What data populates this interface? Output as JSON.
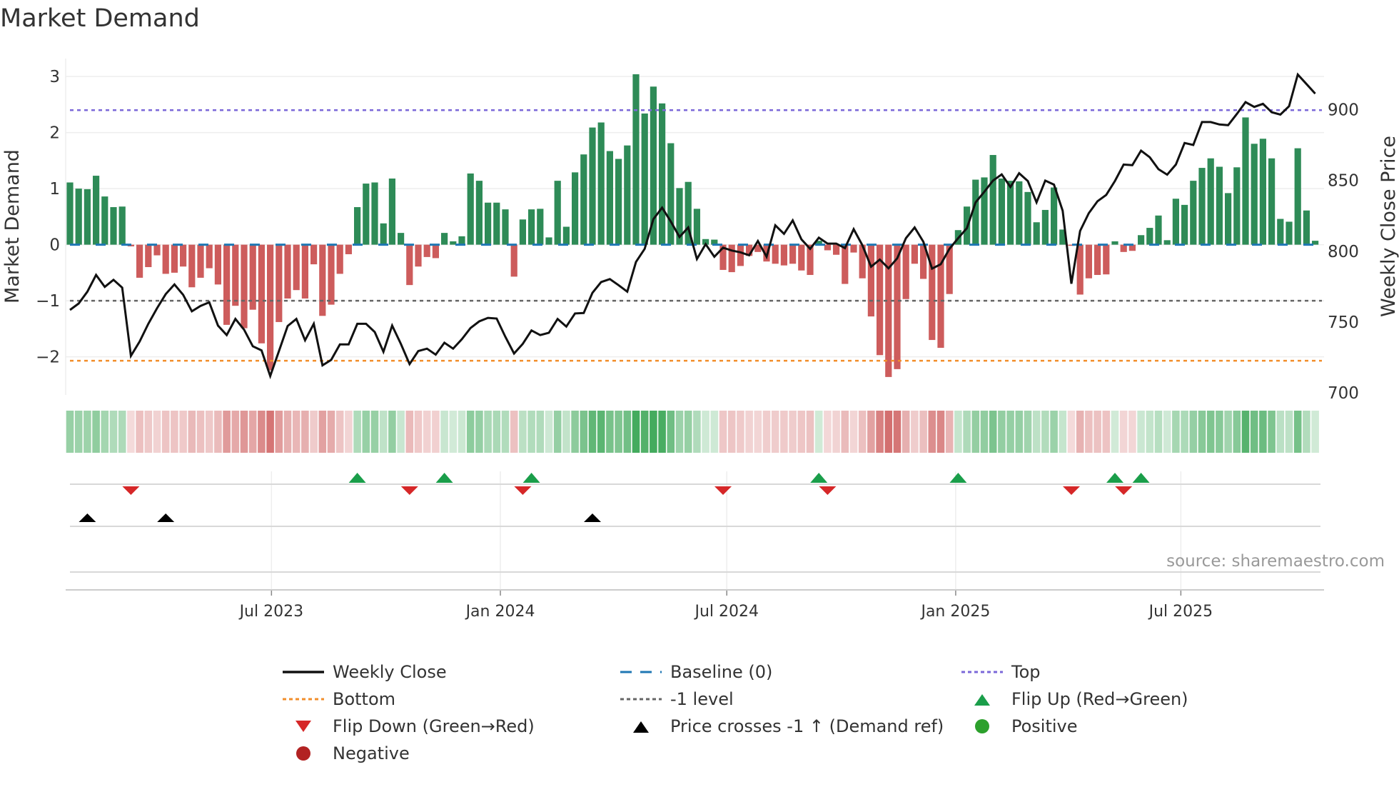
{
  "title": "Market Demand",
  "source": "source: sharemaestro.com",
  "colors": {
    "pos": "#2e8b57",
    "neg": "#cd5c5c",
    "line": "#111111",
    "baseline": "#1f77b4",
    "top": "#7b68d9",
    "bottom": "#f28e2b",
    "minus1": "#666666",
    "flipUp": "#1a9e4a",
    "flipDown": "#d62728",
    "cross": "#000000",
    "positive": "#2ca02c",
    "negative": "#b22222",
    "stripPos": "#3aa655",
    "stripNeg": "#cd5c5c"
  },
  "chart_data": {
    "type": "bar",
    "title": "Market Demand",
    "ylabel": "Market Demand",
    "y2label": "Weekly Close Price",
    "start_date": "2023-01-20",
    "frequency_days": 7,
    "ylim": [
      -2.68,
      3.32
    ],
    "y2lim": [
      698.4,
      936.2
    ],
    "yticks": [
      3,
      2,
      1,
      0,
      -1,
      -2
    ],
    "ytick_labels": [
      "3",
      "2",
      "1",
      "0",
      "−1",
      "−2"
    ],
    "y2ticks": [
      900,
      850,
      800,
      750,
      700
    ],
    "y2tick_labels": [
      "900",
      "850",
      "800",
      "750",
      "700"
    ],
    "xticks": [
      {
        "date": "2023-07-01",
        "label": "Jul 2023"
      },
      {
        "date": "2024-01-01",
        "label": "Jan 2024"
      },
      {
        "date": "2024-07-01",
        "label": "Jul 2024"
      },
      {
        "date": "2025-01-01",
        "label": "Jan 2025"
      },
      {
        "date": "2025-07-01",
        "label": "Jul 2025"
      }
    ],
    "levels": {
      "top": 2.4,
      "bottom": -2.07,
      "minus1": -1,
      "baseline": 0
    },
    "demand": [
      1.11,
      1.0,
      0.99,
      1.23,
      0.86,
      0.67,
      0.68,
      -0.03,
      -0.59,
      -0.4,
      -0.19,
      -0.52,
      -0.5,
      -0.39,
      -0.76,
      -0.59,
      -0.42,
      -0.71,
      -1.43,
      -1.09,
      -1.49,
      -1.16,
      -1.76,
      -2.24,
      -1.38,
      -0.96,
      -0.81,
      -0.96,
      -0.35,
      -1.27,
      -1.07,
      -0.52,
      -0.17,
      0.67,
      1.09,
      1.11,
      0.38,
      1.18,
      0.21,
      -0.72,
      -0.39,
      -0.22,
      -0.24,
      0.21,
      0.06,
      0.15,
      1.27,
      1.14,
      0.75,
      0.75,
      0.63,
      -0.57,
      0.45,
      0.63,
      0.64,
      0.13,
      1.14,
      0.32,
      1.29,
      1.61,
      2.09,
      2.18,
      1.67,
      1.53,
      1.77,
      3.04,
      2.34,
      2.82,
      2.52,
      1.81,
      1.01,
      1.12,
      0.64,
      0.1,
      0.09,
      -0.45,
      -0.49,
      -0.38,
      -0.2,
      -0.13,
      -0.3,
      -0.34,
      -0.37,
      -0.34,
      -0.46,
      -0.54,
      0.07,
      -0.1,
      -0.18,
      -0.7,
      -0.14,
      -0.6,
      -1.28,
      -1.97,
      -2.36,
      -2.22,
      -0.97,
      -0.34,
      -0.61,
      -1.7,
      -1.84,
      -0.88,
      0.26,
      0.68,
      1.16,
      1.2,
      1.6,
      1.18,
      1.14,
      1.13,
      0.94,
      0.4,
      0.62,
      1.02,
      0.27,
      -0.02,
      -0.89,
      -0.6,
      -0.54,
      -0.53,
      0.06,
      -0.13,
      -0.11,
      0.17,
      0.3,
      0.52,
      0.08,
      0.82,
      0.71,
      1.14,
      1.37,
      1.54,
      1.39,
      0.92,
      1.38,
      2.27,
      1.8,
      1.89,
      1.54,
      0.46,
      0.41,
      1.72,
      0.61,
      0.07
    ],
    "weekly_close": [
      758.5,
      763,
      771.4,
      783.2,
      774.8,
      779.8,
      774.3,
      726,
      736.1,
      748.7,
      759.7,
      769.7,
      776.5,
      769.2,
      757.5,
      761.3,
      763.9,
      747.4,
      740.7,
      752.1,
      744.5,
      732.8,
      729.9,
      711.8,
      729.4,
      747.1,
      752.1,
      737,
      748.7,
      719.3,
      723.2,
      734.1,
      734.1,
      748.7,
      748.7,
      742.9,
      728.9,
      747.4,
      734.5,
      720.2,
      729.4,
      731.1,
      726.9,
      735.3,
      731.1,
      737.8,
      745.7,
      750.4,
      752.9,
      752.4,
      739.5,
      727.7,
      734.5,
      744,
      740.7,
      742.4,
      752.1,
      746.7,
      756,
      756.3,
      770.6,
      778.2,
      780.3,
      776,
      771.4,
      792.4,
      801.7,
      822.7,
      830.8,
      821,
      810.1,
      816.8,
      794.5,
      805,
      796.1,
      802.5,
      800.5,
      799.2,
      797.1,
      807.2,
      796.1,
      818.3,
      812.3,
      821.8,
      808.4,
      801.7,
      809.6,
      805.4,
      805.4,
      802.2,
      815.6,
      804.2,
      789.1,
      794.1,
      787.9,
      795,
      809.2,
      816.8,
      806.7,
      787.7,
      790.8,
      801.7,
      809.2,
      816.3,
      834.5,
      842,
      849.9,
      854.3,
      845.4,
      855.1,
      849.6,
      834.5,
      849.9,
      847.1,
      828.6,
      777,
      814.3,
      826.9,
      835.3,
      839.8,
      849.6,
      861.3,
      860.8,
      871.1,
      866.4,
      858,
      854.1,
      861.3,
      876.5,
      875.1,
      891.3,
      891.3,
      889.6,
      889.1,
      897,
      905.4,
      902,
      904.2,
      898.3,
      896.6,
      902.5,
      924.9,
      918.2,
      911.4
    ],
    "flip_up_weeks": [
      33,
      43,
      53,
      86,
      102,
      120,
      123
    ],
    "flip_down_weeks": [
      7,
      39,
      52,
      75,
      87,
      115,
      121
    ],
    "price_cross_weeks": [
      2,
      11,
      60
    ]
  },
  "legend": [
    {
      "label": "Weekly Close",
      "symbol": "line"
    },
    {
      "label": "Baseline (0)",
      "symbol": "baseline"
    },
    {
      "label": "Top",
      "symbol": "top"
    },
    {
      "label": "Bottom",
      "symbol": "bottom"
    },
    {
      "label": "-1 level",
      "symbol": "minus1"
    },
    {
      "label": "Flip Up (Red→Green)",
      "symbol": "flipUp"
    },
    {
      "label": "Flip Down (Green→Red)",
      "symbol": "flipDown"
    },
    {
      "label": "Price crosses -1 ↑ (Demand ref)",
      "symbol": "cross"
    },
    {
      "label": "Positive",
      "symbol": "positive"
    },
    {
      "label": "Negative",
      "symbol": "negative"
    }
  ]
}
